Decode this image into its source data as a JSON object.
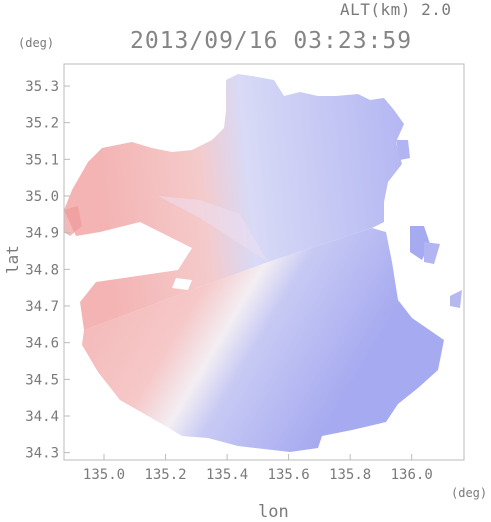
{
  "header": {
    "altitude_label": "ALT(km) 2.0",
    "datetime": "2013/09/16 03:23:59"
  },
  "axes": {
    "x_unit": "(deg)",
    "y_unit": "(deg)",
    "x_title": "lon",
    "y_title": "lat",
    "x_ticks": [
      "135.0",
      "135.2",
      "135.4",
      "135.6",
      "135.8",
      "136.0"
    ],
    "y_ticks": [
      "35.3",
      "35.2",
      "35.1",
      "35.0",
      "34.9",
      "34.8",
      "34.7",
      "34.6",
      "34.5",
      "34.4",
      "34.3"
    ]
  },
  "map": {
    "x_range": [
      134.87,
      136.17
    ],
    "y_range": [
      34.28,
      35.36
    ],
    "radar_center": [
      135.53,
      34.83
    ],
    "approaching_color": "#f2aaaa",
    "receding_color": "#a8acf2",
    "frame_color": "#bbbbbb"
  }
}
